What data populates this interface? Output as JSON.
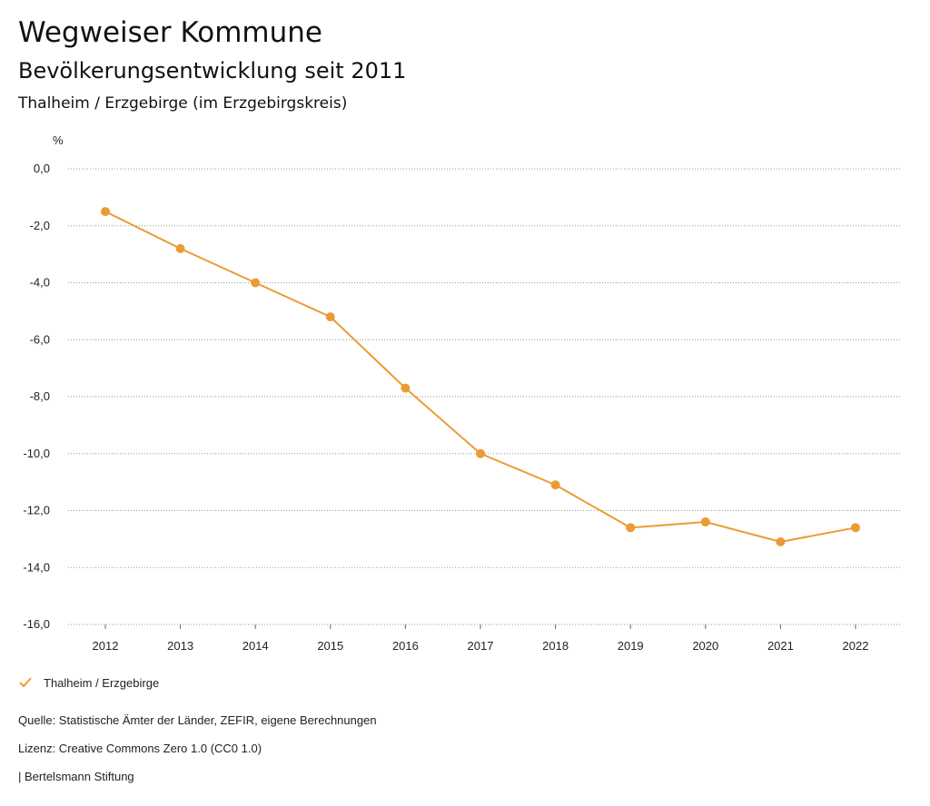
{
  "header": {
    "title": "Wegweiser Kommune",
    "subtitle": "Bevölkerungsentwicklung seit 2011",
    "region": "Thalheim / Erzgebirge (im Erzgebirgskreis)"
  },
  "chart_data": {
    "type": "line",
    "ylabel": "%",
    "x": [
      "2012",
      "2013",
      "2014",
      "2015",
      "2016",
      "2017",
      "2018",
      "2019",
      "2020",
      "2021",
      "2022"
    ],
    "series": [
      {
        "name": "Thalheim / Erzgebirge",
        "color": "#EB9B34",
        "values": [
          -1.5,
          -2.8,
          -4.0,
          -5.2,
          -7.7,
          -10.0,
          -11.1,
          -12.6,
          -12.4,
          -13.1,
          -12.6
        ]
      }
    ],
    "ylim": [
      -16,
      0
    ],
    "yticks": [
      "0,0",
      "-2,0",
      "-4,0",
      "-6,0",
      "-8,0",
      "-10,0",
      "-12,0",
      "-14,0",
      "-16,0"
    ],
    "grid": true,
    "legend_position": "bottom-left"
  },
  "footer": {
    "source": "Quelle: Statistische Ämter der Länder, ZEFIR, eigene Berechnungen",
    "license": "Lizenz: Creative Commons Zero 1.0 (CC0 1.0)",
    "publisher": "| Bertelsmann Stiftung"
  }
}
